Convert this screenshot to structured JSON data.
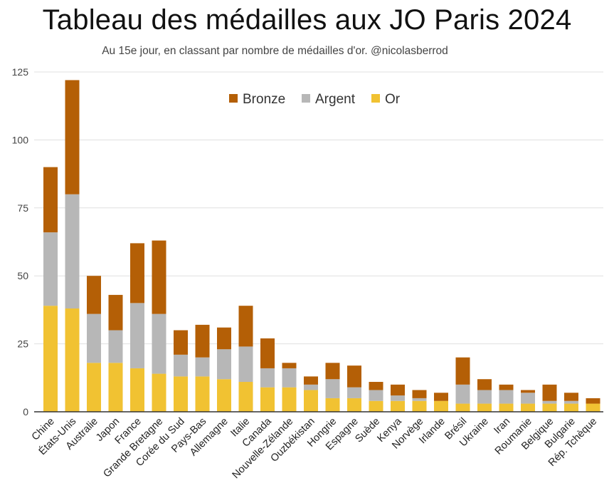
{
  "title": "Tableau des médailles aux JO Paris 2024",
  "subtitle": "Au 15e jour, en classant par nombre de médailles d'or. @nicolasberrod",
  "colors": {
    "or": "#F1C232",
    "argent": "#B7B7B7",
    "bronze": "#B45F06",
    "grid": "#E0E0E0",
    "axis": "#333333"
  },
  "chart_data": {
    "type": "bar",
    "stacked": true,
    "title": "Tableau des médailles aux JO Paris 2024",
    "subtitle": "Au 15e jour, en classant par nombre de médailles d'or. @nicolasberrod",
    "xlabel": "",
    "ylabel": "",
    "ylim": [
      0,
      125
    ],
    "yticks": [
      0,
      25,
      50,
      75,
      100,
      125
    ],
    "legend_position": "top-center",
    "categories": [
      "Chine",
      "États-Unis",
      "Australie",
      "Japon",
      "France",
      "Grande Bretagne",
      "Corée du Sud",
      "Pays-Bas",
      "Allemagne",
      "Italie",
      "Canada",
      "Nouvelle-Zélande",
      "Ouzbékistan",
      "Hongrie",
      "Espagne",
      "Suède",
      "Kenya",
      "Norvège",
      "Irlande",
      "Brésil",
      "Ukraine",
      "Iran",
      "Roumanie",
      "Belgique",
      "Bulgarie",
      "Rép. Tchèque"
    ],
    "series": [
      {
        "name": "Or",
        "color": "#F1C232",
        "values": [
          39,
          38,
          18,
          18,
          16,
          14,
          13,
          13,
          12,
          11,
          9,
          9,
          8,
          5,
          5,
          4,
          4,
          4,
          4,
          3,
          3,
          3,
          3,
          3,
          3,
          3
        ]
      },
      {
        "name": "Argent",
        "color": "#B7B7B7",
        "values": [
          27,
          42,
          18,
          12,
          24,
          22,
          8,
          7,
          11,
          13,
          7,
          7,
          2,
          7,
          4,
          4,
          2,
          1,
          0,
          7,
          5,
          5,
          4,
          1,
          1,
          0
        ]
      },
      {
        "name": "Bronze",
        "color": "#B45F06",
        "values": [
          24,
          42,
          14,
          13,
          22,
          27,
          9,
          12,
          8,
          15,
          11,
          2,
          3,
          6,
          8,
          3,
          4,
          3,
          3,
          10,
          4,
          2,
          1,
          6,
          3,
          2
        ]
      }
    ],
    "legend": [
      "Bronze",
      "Argent",
      "Or"
    ]
  }
}
